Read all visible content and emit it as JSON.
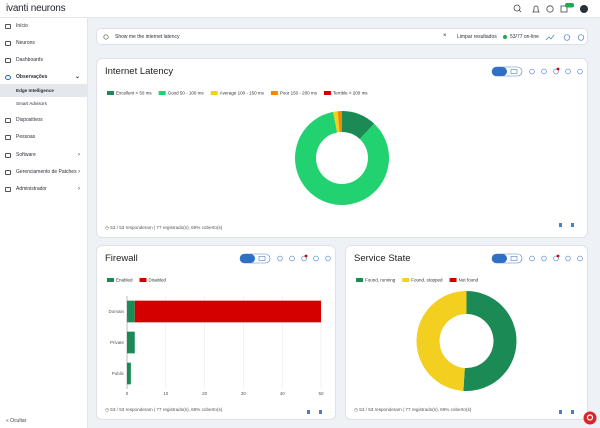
{
  "header": {
    "logo": "ivanti neurons"
  },
  "sidebar": {
    "items": [
      "Início",
      "Neurons",
      "Dashboards",
      "Observações",
      "Edge Intelligence",
      "Smart Advisors",
      "Dispositivos",
      "Pessoas",
      "Software",
      "Gerenciamento de Patches",
      "Administrador"
    ],
    "collapse": "Ocultar"
  },
  "search": {
    "query": "Show me the internet latency",
    "clear": "Limpar resultados",
    "status": "53/77 on-line"
  },
  "chart_data": [
    {
      "type": "donut",
      "title": "Internet Latency",
      "categories": [
        "Excellent < 50 ms",
        "Good 50 - 100 ms",
        "Average 100 - 150 ms",
        "Poor 150 - 200 ms",
        "Terrible > 200 ms"
      ],
      "values": [
        12,
        85,
        1.5,
        1.5,
        0
      ],
      "colors": [
        "#1b8a55",
        "#22d16f",
        "#f3cf1f",
        "#f08a00",
        "#d40000"
      ],
      "footer": "53 / 53 responderam | 77 registrado(s), 69% coberto(s)"
    },
    {
      "type": "bar",
      "orientation": "horizontal",
      "stacked": true,
      "title": "Firewall",
      "categories": [
        "Domain",
        "Private",
        "Public"
      ],
      "series": [
        {
          "name": "Enabled",
          "color": "#1b8a55",
          "values": [
            2,
            2,
            1
          ]
        },
        {
          "name": "Disabled",
          "color": "#d40000",
          "values": [
            48,
            0,
            0
          ]
        }
      ],
      "xlim": [
        0,
        50
      ],
      "xticks": [
        0,
        10,
        20,
        30,
        40,
        50
      ],
      "grid": true,
      "footer": "53 / 53 responderam | 77 registrado(s), 69% coberto(s)"
    },
    {
      "type": "donut",
      "title": "Service State",
      "categories": [
        "Found, running",
        "Found, stopped",
        "Not found"
      ],
      "values": [
        51,
        49,
        0
      ],
      "colors": [
        "#1b8a55",
        "#f3cf1f",
        "#d40000"
      ],
      "footer": "53 / 53 responderam | 77 registrado(s), 69% coberto(s)"
    }
  ]
}
